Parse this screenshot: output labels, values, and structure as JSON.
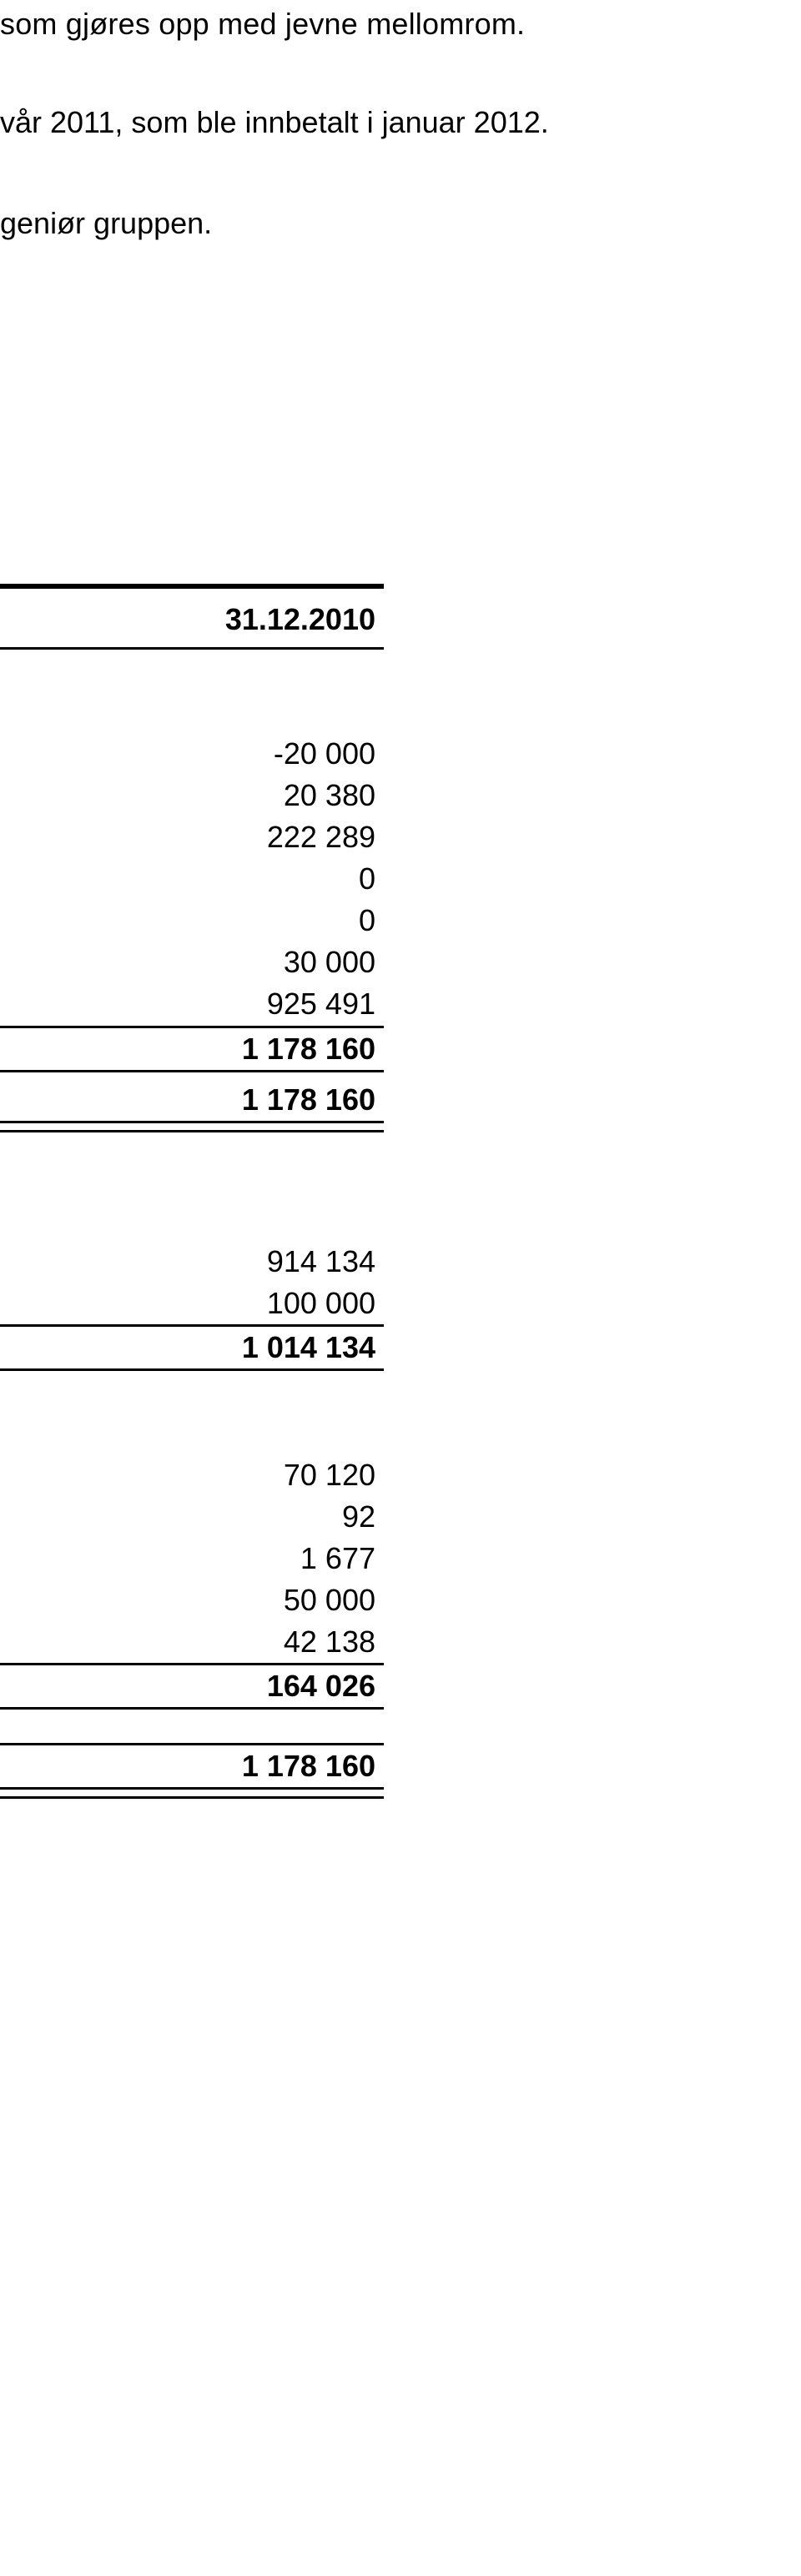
{
  "fragments": {
    "line1": "som gjøres opp med jevne mellomrom.",
    "line2": "vår 2011, som ble innbetalt i januar 2012.",
    "line3": "geniør gruppen."
  },
  "table": {
    "header": "31.12.2010",
    "block1": [
      "-20 000",
      "20 380",
      "222 289",
      "0",
      "0",
      "30 000",
      "925 491",
      "1 178 160"
    ],
    "block1_total": "1 178 160",
    "block2": [
      "914 134",
      "100 000",
      "1 014 134"
    ],
    "block3": [
      "70 120",
      "92",
      "1 677",
      "50 000",
      "42 138",
      "164 026"
    ],
    "grand_total": "1 178 160"
  }
}
